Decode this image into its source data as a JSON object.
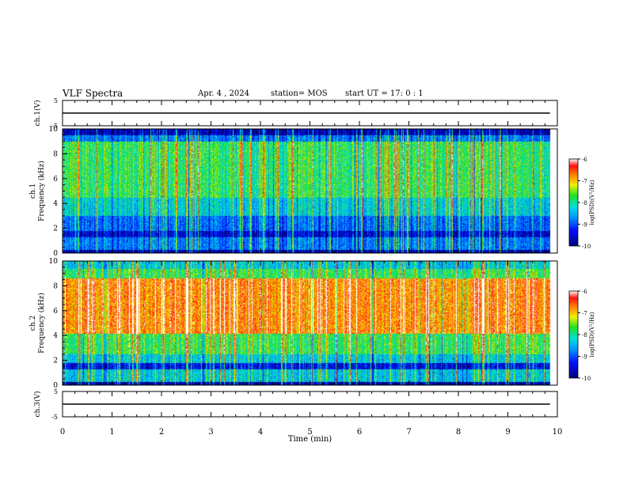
{
  "header": {
    "title": "VLF Spectra",
    "date": "Apr. 4 , 2024",
    "station": "station= MOS",
    "start": "start UT =  17: 0  : 1"
  },
  "chart_data": [
    {
      "type": "line",
      "id": "ch1",
      "ylabel": "ch.1(V)",
      "ylim": [
        -5,
        5
      ],
      "ytick_labels": [
        "5",
        "-5"
      ],
      "x": [
        0,
        10
      ],
      "values": [
        0,
        0
      ],
      "xlim": [
        0,
        10
      ]
    },
    {
      "type": "heatmap",
      "id": "spec1",
      "ylabel": "ch.1\nFrequency (kHz)",
      "ylim": [
        0,
        10
      ],
      "ytick_labels": [
        "0",
        "2",
        "4",
        "6",
        "8",
        "10"
      ],
      "xlim": [
        0,
        10
      ],
      "data_end_min": 9.85,
      "colorbar": {
        "label": "log(PSD)(V²/Hz)",
        "range": [
          -10,
          -6
        ],
        "tick_labels": [
          "-6",
          "-7",
          "-8",
          "-9",
          "-10"
        ]
      }
    },
    {
      "type": "heatmap",
      "id": "spec2",
      "ylabel": "ch.2\nFrequency (kHz)",
      "ylim": [
        0,
        10
      ],
      "ytick_labels": [
        "0",
        "2",
        "4",
        "6",
        "8",
        "10"
      ],
      "xlim": [
        0,
        10
      ],
      "data_end_min": 9.85,
      "colorbar": {
        "label": "log(PSD)(V²/Hz)",
        "range": [
          -10,
          -6
        ],
        "tick_labels": [
          "-6",
          "-7",
          "-8",
          "-9",
          "-10"
        ]
      }
    },
    {
      "type": "line",
      "id": "ch3",
      "ylabel": "ch.3(V)",
      "ylim": [
        -5,
        5
      ],
      "ytick_labels": [
        "5",
        "-5"
      ],
      "x": [
        0,
        10
      ],
      "values": [
        0,
        0
      ],
      "xlim": [
        0,
        10
      ]
    }
  ],
  "xaxis": {
    "label": "Time (min)",
    "tick_labels": [
      "0",
      "1",
      "2",
      "3",
      "4",
      "5",
      "6",
      "7",
      "8",
      "9",
      "10"
    ]
  }
}
